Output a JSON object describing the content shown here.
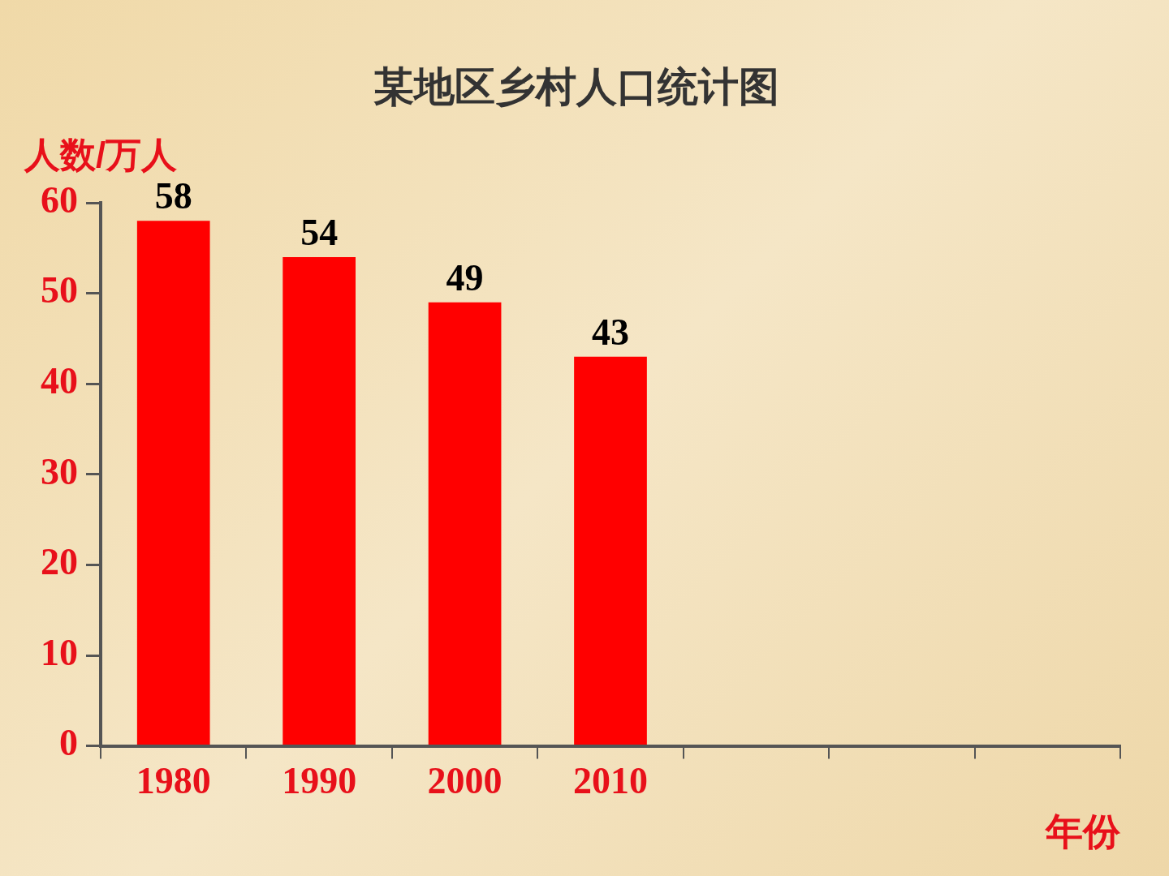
{
  "chart_data": {
    "type": "bar",
    "title": "某地区乡村人口统计图",
    "y_label": "人数/万人",
    "x_label": "年份",
    "categories": [
      "1980",
      "1990",
      "2000",
      "2010",
      null,
      null,
      null
    ],
    "values": [
      58,
      54,
      49,
      43,
      null,
      null,
      null
    ],
    "color": "#ff0000",
    "ylim": [
      0,
      60
    ],
    "yticks": [
      0,
      10,
      20,
      30,
      40,
      50,
      60
    ],
    "grid": false,
    "data_labels": true
  }
}
